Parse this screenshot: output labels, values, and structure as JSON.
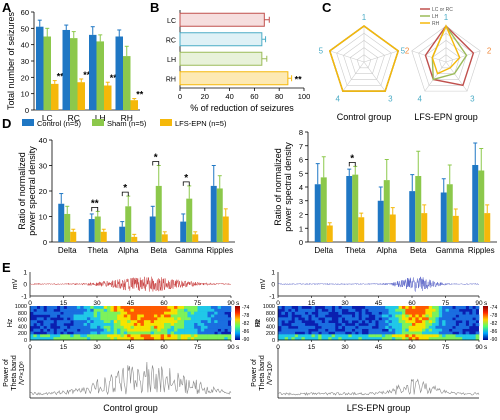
{
  "panel_letters": [
    "A",
    "B",
    "C",
    "D",
    "E"
  ],
  "colors": {
    "control": "#1f77c4",
    "sham": "#8cc84b",
    "lfs": "#f5b80a",
    "radar_red": "#c0504d",
    "eeg_control": "#c83c3c",
    "eeg_lfs": "#5a64c8"
  },
  "group_labels": {
    "control": "Control group",
    "lfs": "LFS-EPN group"
  },
  "chart_data": [
    {
      "id": "A",
      "type": "bar",
      "ylabel": "Total number of seizures",
      "ylim": [
        0,
        60
      ],
      "yticks": [
        0,
        10,
        20,
        30,
        40,
        50,
        60
      ],
      "categories": [
        "LC",
        "RC",
        "LH",
        "RH"
      ],
      "series": [
        {
          "key": "control",
          "values": [
            51,
            49,
            46,
            45
          ],
          "errors": [
            4,
            3,
            5,
            4
          ]
        },
        {
          "key": "sham",
          "values": [
            45,
            44,
            42,
            33
          ],
          "errors": [
            5,
            4,
            4,
            6
          ]
        },
        {
          "key": "lfs",
          "values": [
            16,
            17,
            15,
            6
          ],
          "errors": [
            2,
            2,
            2,
            1
          ]
        }
      ],
      "annotations": [
        "***",
        "***",
        "**",
        "**"
      ]
    },
    {
      "id": "B",
      "type": "bar",
      "orientation": "horizontal",
      "xlabel": "% of reduction of seizures",
      "xlim": [
        0,
        100
      ],
      "xticks": [
        0,
        20,
        40,
        60,
        80,
        100
      ],
      "categories": [
        "LC",
        "RC",
        "LH",
        "RH"
      ],
      "values": [
        68,
        66,
        66,
        87
      ],
      "errors": [
        4,
        3,
        4,
        3
      ],
      "bar_colors": [
        "#c0504d",
        "#4bacc6",
        "#9bbb59",
        "#f5b80a"
      ],
      "annotation": "**"
    },
    {
      "id": "C",
      "type": "radar",
      "legend": [
        "LC or RC",
        "LH",
        "RH"
      ],
      "legend_colors": [
        "#c0504d",
        "#9bbb59",
        "#f5b80a"
      ],
      "axis_labels": [
        "1",
        "2",
        "3",
        "4",
        "5"
      ],
      "axis_label_colors": [
        "#4bacc6",
        "#f0883a",
        "#4bacc6",
        "#4bacc6",
        "#4bacc6"
      ],
      "subplots": [
        {
          "group": "Control group",
          "series": [
            [
              5,
              5,
              5,
              5,
              5
            ],
            [
              5,
              5,
              5,
              5,
              5
            ],
            [
              5,
              5,
              5,
              5,
              5
            ]
          ]
        },
        {
          "group": "LFS-EPN group",
          "series": [
            [
              5,
              4,
              4,
              3,
              3
            ],
            [
              5,
              3,
              2,
              3,
              2
            ],
            [
              5,
              2,
              1,
              2,
              2
            ]
          ]
        }
      ]
    },
    {
      "id": "D-left",
      "type": "bar",
      "ylabel": "Ratio of normalized power spectral density",
      "ylim": [
        0,
        40
      ],
      "yticks": [
        0,
        10,
        20,
        30,
        40
      ],
      "categories": [
        "Delta",
        "Theta",
        "Alpha",
        "Beta",
        "Gamma",
        "Ripples"
      ],
      "legend": [
        "Control (n=5)",
        "Sham (n=5)",
        "LFS-EPN (n=5)"
      ],
      "series": [
        {
          "key": "control",
          "values": [
            15,
            9,
            6,
            10,
            8,
            22
          ],
          "errors": [
            4,
            2,
            2,
            4,
            3,
            8
          ]
        },
        {
          "key": "sham",
          "values": [
            11,
            10,
            14,
            22,
            17,
            21
          ],
          "errors": [
            3,
            2,
            4,
            8,
            5,
            5
          ]
        },
        {
          "key": "lfs",
          "values": [
            4,
            4,
            2,
            3,
            3,
            10
          ],
          "errors": [
            1,
            1,
            1,
            1,
            1,
            3
          ]
        }
      ],
      "significance": [
        {
          "category": "Theta",
          "label": "**"
        },
        {
          "category": "Alpha",
          "label": "*"
        },
        {
          "category": "Beta",
          "label": "*"
        },
        {
          "category": "Gamma",
          "label": "*"
        }
      ]
    },
    {
      "id": "D-right",
      "type": "bar",
      "ylabel": "Ratio of normalized power spectral density",
      "ylim": [
        0,
        8
      ],
      "yticks": [
        0,
        1,
        2,
        3,
        4,
        5,
        6,
        7,
        8
      ],
      "categories": [
        "Delta",
        "Theta",
        "Alpha",
        "Beta",
        "Gamma",
        "Ripples"
      ],
      "series": [
        {
          "key": "control",
          "values": [
            4.2,
            4.8,
            3.0,
            3.7,
            3.6,
            5.6
          ],
          "errors": [
            1.5,
            0.5,
            1.0,
            1.2,
            1.0,
            1.6
          ]
        },
        {
          "key": "sham",
          "values": [
            4.7,
            4.9,
            4.5,
            4.8,
            4.2,
            5.2
          ],
          "errors": [
            1.5,
            0.6,
            1.5,
            1.8,
            1.4,
            1.6
          ]
        },
        {
          "key": "lfs",
          "values": [
            1.2,
            1.8,
            2.0,
            2.1,
            1.9,
            2.1
          ],
          "errors": [
            0.2,
            0.3,
            0.5,
            0.6,
            0.5,
            0.6
          ]
        }
      ],
      "significance": [
        {
          "category": "Theta",
          "label": "*"
        }
      ]
    },
    {
      "id": "E-trace",
      "type": "line",
      "ylabel": "mV",
      "ylim": [
        -1,
        1
      ],
      "yticks": [
        -1,
        0,
        1
      ],
      "xlim": [
        0,
        90
      ],
      "xticks": [
        0,
        15,
        30,
        45,
        60,
        75,
        90
      ],
      "xunit": "s"
    },
    {
      "id": "E-spectrogram",
      "type": "heatmap",
      "ylabel": "Hz",
      "ylim": [
        0,
        1000
      ],
      "yticks": [
        0,
        200,
        400,
        600,
        800,
        1000
      ],
      "xlim": [
        0,
        90
      ],
      "xticks": [
        0,
        15,
        30,
        45,
        60,
        75,
        90
      ],
      "xunit": "s",
      "colorbar_ticks": [
        -74,
        -78,
        -82,
        -86,
        -90
      ],
      "colorbar_label": "dB"
    },
    {
      "id": "E-theta-power",
      "type": "line",
      "ylabel_line1": "Power of",
      "ylabel_line2": "Theta band",
      "ylabel_line3": "/V²×10⁸"
    }
  ]
}
